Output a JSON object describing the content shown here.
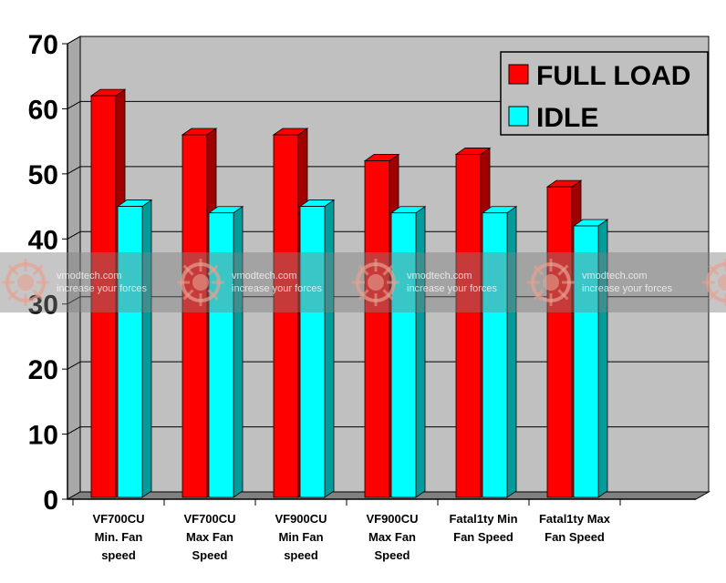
{
  "chart_data": {
    "type": "bar",
    "style": "3d-clustered-column",
    "categories": [
      [
        "VF700CU",
        "Min. Fan",
        "speed"
      ],
      [
        "VF700CU",
        "Max Fan",
        "Speed"
      ],
      [
        "VF900CU",
        "Min Fan",
        "speed"
      ],
      [
        "VF900CU",
        "Max Fan",
        "Speed"
      ],
      [
        "Fatal1ty Min",
        "Fan Speed"
      ],
      [
        "Fatal1ty Max",
        "Fan Speed"
      ]
    ],
    "series": [
      {
        "name": "FULL LOAD",
        "values": [
          62,
          56,
          56,
          52,
          53,
          48
        ],
        "color": "#ff0000",
        "top_color": "#ff0000",
        "side_color": "#a00000"
      },
      {
        "name": "IDLE",
        "values": [
          45,
          44,
          45,
          44,
          44,
          42
        ],
        "color": "#00ffff",
        "top_color": "#00ffff",
        "side_color": "#009c9c"
      }
    ],
    "yticks": [
      0,
      10,
      20,
      30,
      40,
      50,
      60,
      70
    ],
    "ylim": [
      0,
      70
    ],
    "grid": true,
    "wall_color": "#c0c0c0",
    "floor_color": "#808080",
    "legend_position": "top-right",
    "title": "",
    "xlabel": "",
    "ylabel": ""
  },
  "watermark": {
    "line1": "vmodtech.com",
    "line2": "increase your forces"
  }
}
